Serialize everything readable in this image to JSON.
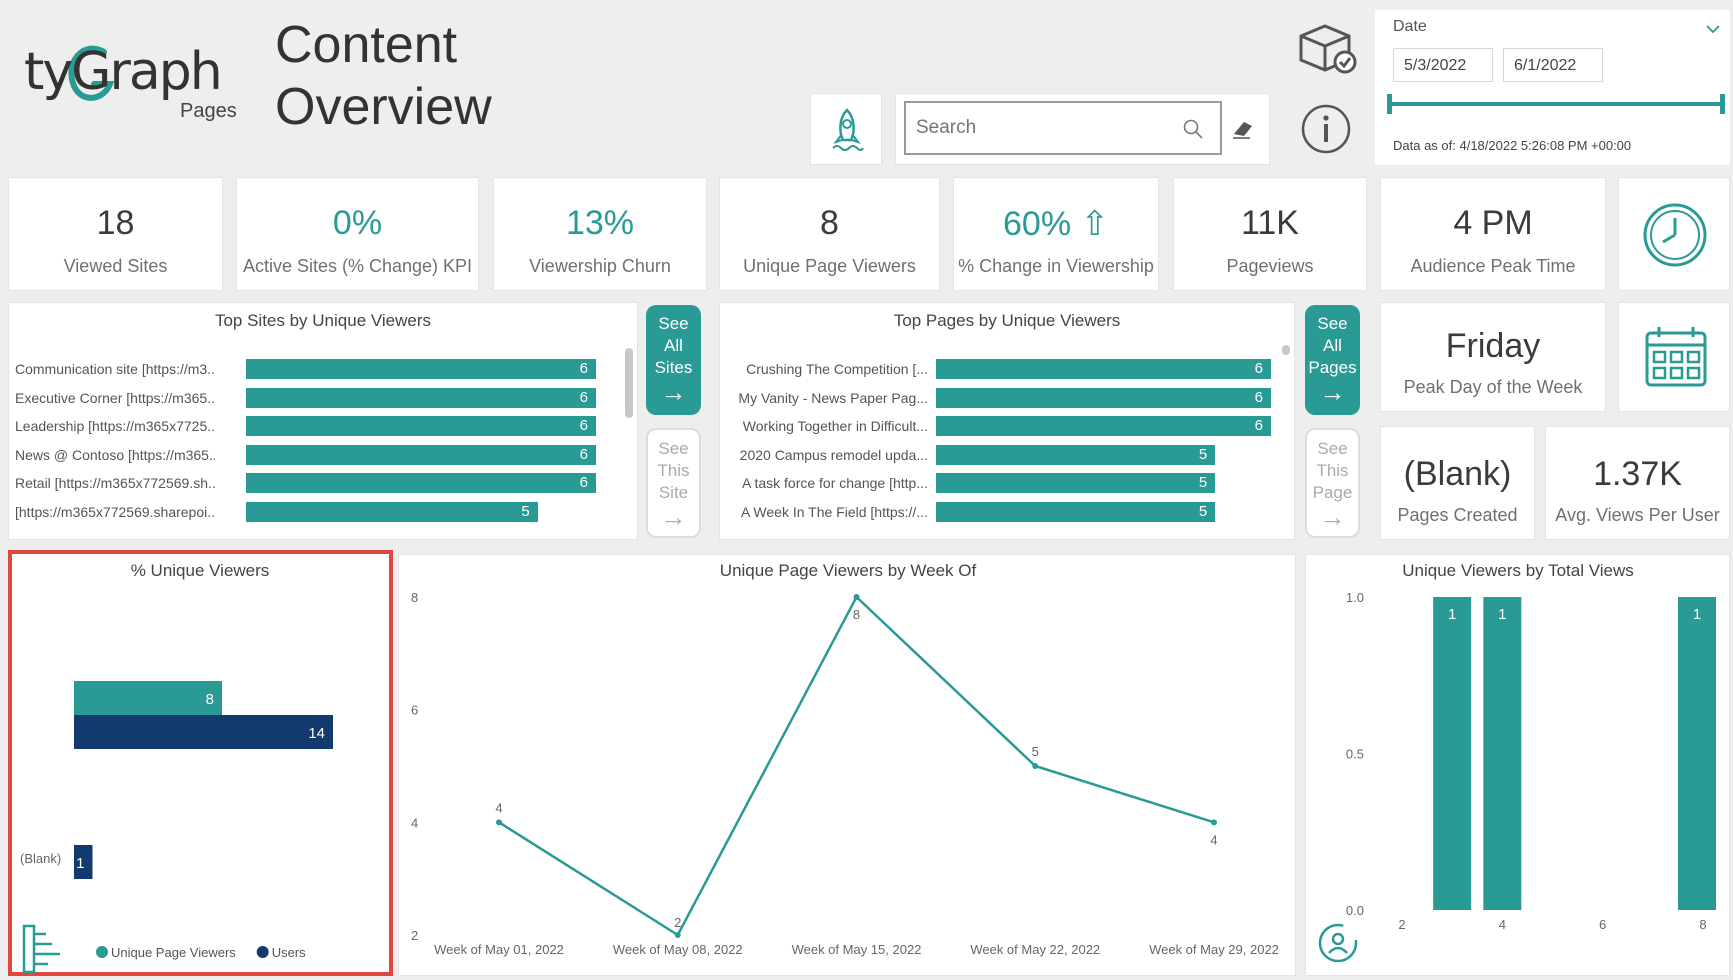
{
  "brand": {
    "logo_main": "tyGraph",
    "logo_sub": "Pages"
  },
  "page_title_line1": "Content",
  "page_title_line2": "Overview",
  "search": {
    "placeholder": "Search"
  },
  "date_filter": {
    "label": "Date",
    "start": "5/3/2022",
    "end": "6/1/2022",
    "data_as_of": "Data as of: 4/18/2022 5:26:08 PM +00:00"
  },
  "kpis": [
    {
      "value": "18",
      "label": "Viewed Sites",
      "teal": false
    },
    {
      "value": "0%",
      "label": "Active Sites (% Change) KPI",
      "teal": true
    },
    {
      "value": "13%",
      "label": "Viewership Churn",
      "teal": true
    },
    {
      "value": "8",
      "label": "Unique Page Viewers",
      "teal": false
    },
    {
      "value": "60% ⇧",
      "label": "% Change in Viewership",
      "teal": true
    },
    {
      "value": "11K",
      "label": "Pageviews",
      "teal": false
    },
    {
      "value": "4 PM",
      "label": "Audience Peak Time",
      "teal": false
    }
  ],
  "peak_day": {
    "value": "Friday",
    "label": "Peak Day of the Week"
  },
  "pages_created": {
    "value": "(Blank)",
    "label": "Pages Created"
  },
  "avg_views": {
    "value": "1.37K",
    "label": "Avg. Views Per User"
  },
  "buttons": {
    "see_all_sites": [
      "See",
      "All",
      "Sites"
    ],
    "see_this_site": [
      "See",
      "This",
      "Site"
    ],
    "see_all_pages": [
      "See",
      "All",
      "Pages"
    ],
    "see_this_page": [
      "See",
      "This",
      "Page"
    ]
  },
  "top_sites": {
    "title": "Top Sites by Unique Viewers",
    "rows": [
      {
        "label": "Communication site [https://m3...",
        "value": 6
      },
      {
        "label": "Executive Corner [https://m365...",
        "value": 6
      },
      {
        "label": "Leadership [https://m365x7725...",
        "value": 6
      },
      {
        "label": "News @ Contoso [https://m365...",
        "value": 6
      },
      {
        "label": "Retail [https://m365x772569.sh...",
        "value": 6
      },
      {
        "label": "[https://m365x772569.sharepoi...",
        "value": 5
      }
    ]
  },
  "top_pages": {
    "title": "Top Pages by Unique Viewers",
    "rows": [
      {
        "label": "Crushing The Competition [...",
        "value": 6
      },
      {
        "label": "My Vanity - News Paper Pag...",
        "value": 6
      },
      {
        "label": "Working Together in Difficult...",
        "value": 6
      },
      {
        "label": "2020 Campus remodel upda...",
        "value": 5
      },
      {
        "label": "A task force for change [http...",
        "value": 5
      },
      {
        "label": "A Week In The Field [https://...",
        "value": 5
      }
    ]
  },
  "chart_data": [
    {
      "type": "bar",
      "title": "% Unique Viewers",
      "categories": [
        "",
        "(Blank)"
      ],
      "series": [
        {
          "name": "Unique Page Viewers",
          "values": [
            8,
            null
          ],
          "color": "#2a9a94"
        },
        {
          "name": "Users",
          "values": [
            14,
            1
          ],
          "color": "#123a6e"
        }
      ],
      "orientation": "horizontal",
      "legend": "bottom"
    },
    {
      "type": "line",
      "title": "Unique Page Viewers by Week Of",
      "x": [
        "Week of May 01, 2022",
        "Week of May 08, 2022",
        "Week of May 15, 2022",
        "Week of May 22, 2022",
        "Week of May 29, 2022"
      ],
      "values": [
        4,
        2,
        8,
        5,
        4
      ],
      "yticks": [
        2,
        4,
        6,
        8
      ],
      "ylim": [
        2,
        8
      ],
      "color": "#2a9a94"
    },
    {
      "type": "bar",
      "title": "Unique Viewers by Total Views",
      "x": [
        3,
        4,
        8
      ],
      "values": [
        1,
        1,
        1
      ],
      "xticks": [
        2,
        4,
        6,
        8
      ],
      "yticks": [
        "0.0",
        "0.5",
        "1.0"
      ],
      "ylim": [
        0,
        1
      ],
      "xlim": [
        2,
        8
      ],
      "color": "#2a9a94"
    }
  ]
}
